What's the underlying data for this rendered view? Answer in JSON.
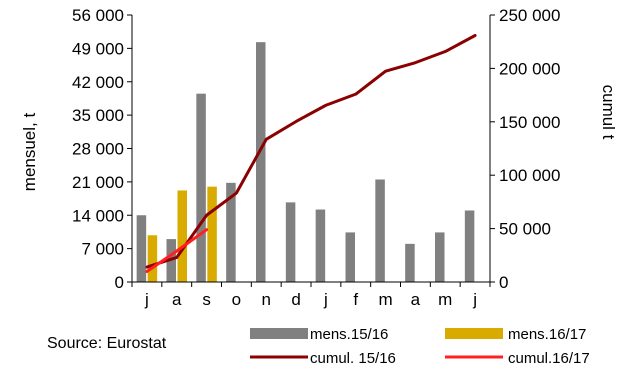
{
  "chart_data": {
    "type": "bar",
    "source": "Source: Eurostat",
    "categories": [
      "j",
      "a",
      "s",
      "o",
      "n",
      "d",
      "j",
      "f",
      "m",
      "a",
      "m",
      "j"
    ],
    "y_left": {
      "label": "mensuel, t",
      "range": [
        0,
        56000
      ],
      "ticks": [
        0,
        7000,
        14000,
        21000,
        28000,
        35000,
        42000,
        49000,
        56000
      ],
      "tick_labels": [
        "0",
        "7 000",
        "14 000",
        "21 000",
        "28 000",
        "35 000",
        "42 000",
        "49 000",
        "56 000"
      ]
    },
    "y_right": {
      "label": "cumul t",
      "range": [
        0,
        250000
      ],
      "ticks": [
        0,
        50000,
        100000,
        150000,
        200000,
        250000
      ],
      "tick_labels": [
        "0",
        "50 000",
        "100 000",
        "150 000",
        "200 000",
        "250 000"
      ]
    },
    "bar_series": [
      {
        "name": "mens.15/16",
        "color": "#808080",
        "axis": "left",
        "values": [
          14000,
          9000,
          39500,
          20800,
          50300,
          16700,
          15200,
          10400,
          21500,
          8000,
          10400,
          15000
        ]
      },
      {
        "name": "mens.16/17",
        "color": "#D9AA00",
        "axis": "left",
        "values": [
          9800,
          19200,
          20000,
          null,
          null,
          null,
          null,
          null,
          null,
          null,
          null,
          null
        ]
      }
    ],
    "line_series": [
      {
        "name": "cumul. 15/16",
        "color": "#8B0000",
        "axis": "right",
        "values": [
          14000,
          23000,
          62500,
          83300,
          133600,
          150300,
          165500,
          175900,
          197400,
          205400,
          215800,
          230800
        ]
      },
      {
        "name": "cumul.16/17",
        "color": "#FF2020",
        "axis": "right",
        "values": [
          9800,
          29000,
          49000,
          null,
          null,
          null,
          null,
          null,
          null,
          null,
          null,
          null
        ]
      }
    ],
    "legend": [
      {
        "name": "mens.15/16",
        "kind": "bar",
        "color": "#808080"
      },
      {
        "name": "mens.16/17",
        "kind": "bar",
        "color": "#D9AA00"
      },
      {
        "name": "cumul. 15/16",
        "kind": "line",
        "color": "#8B0000"
      },
      {
        "name": "cumul.16/17",
        "kind": "line",
        "color": "#FF2020"
      }
    ],
    "legend_position": "bottom",
    "grid": false
  }
}
